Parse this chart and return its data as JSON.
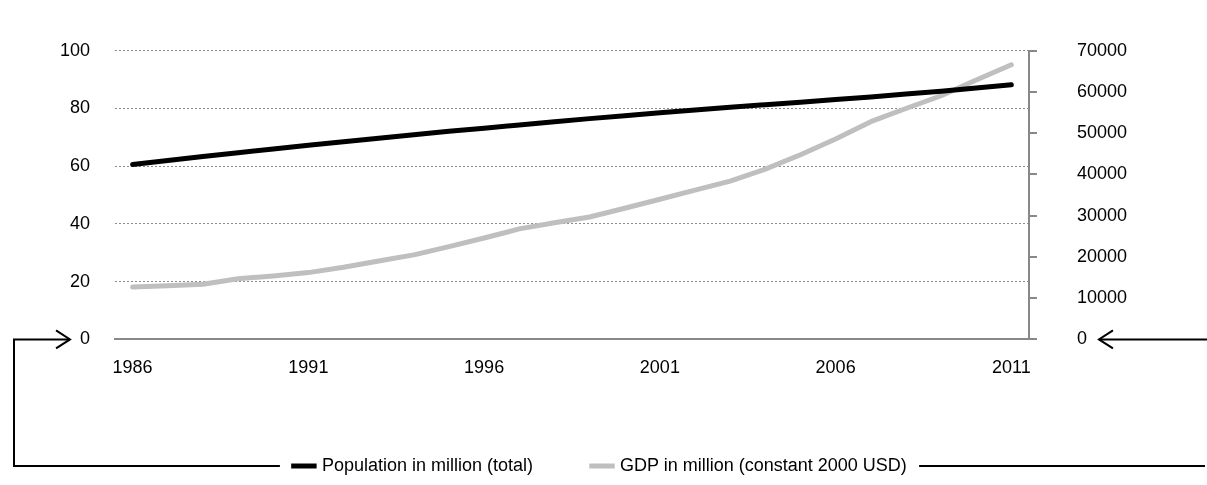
{
  "chart_data": {
    "type": "line",
    "categories": [
      "1986",
      null,
      null,
      null,
      null,
      "1991",
      null,
      null,
      null,
      null,
      "1996",
      null,
      null,
      null,
      null,
      "2001",
      null,
      null,
      null,
      null,
      "2006",
      null,
      null,
      null,
      null,
      "2011"
    ],
    "series": [
      {
        "name": "Population in million (total)",
        "color": "#000000",
        "values": [
          60.6,
          62.0,
          63.4,
          64.7,
          66.0,
          67.3,
          68.5,
          69.7,
          70.9,
          72.1,
          73.2,
          74.3,
          75.4,
          76.5,
          77.5,
          78.5,
          79.5,
          80.4,
          81.3,
          82.2,
          83.1,
          84.0,
          85.0,
          86.0,
          87.1,
          88.2
        ]
      },
      {
        "name": "GDP in million (constant 2000 USD)",
        "color": "#bfbfbf",
        "axis": "y2",
        "values": [
          12700,
          13000,
          13400,
          14700,
          15400,
          16200,
          17500,
          19000,
          20500,
          22500,
          24600,
          26800,
          28300,
          29700,
          31800,
          34000,
          36200,
          38400,
          41300,
          44800,
          48600,
          52800,
          56000,
          59100,
          62900,
          66600
        ]
      }
    ],
    "ylim": [
      0,
      100
    ],
    "yticks": [
      0,
      20,
      40,
      60,
      80,
      100
    ],
    "y2lim": [
      0,
      70000
    ],
    "y2ticks": [
      0,
      10000,
      20000,
      30000,
      40000,
      50000,
      60000,
      70000
    ],
    "grid": "y",
    "legend": "bottom",
    "marker": "none",
    "line_style": "solid"
  }
}
